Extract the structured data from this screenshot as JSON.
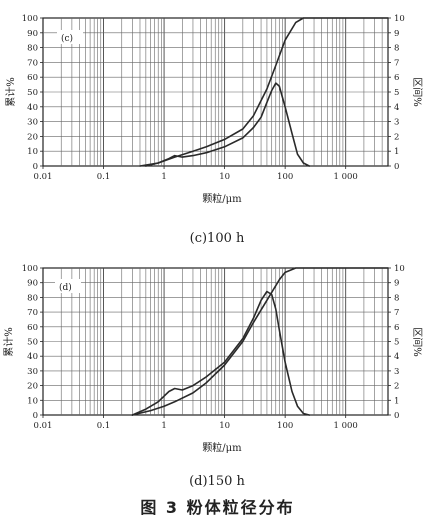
{
  "figure_caption": "图 3    粉体粒径分布",
  "chart_data": [
    {
      "type": "line",
      "caption": "(c)100 h",
      "panel_tag": "(c)",
      "xlabel": "颗粒/μm",
      "ylabel_left": "累计%",
      "ylabel_right": "区间%",
      "x_scale": "log",
      "xlim": [
        0.01,
        5000
      ],
      "ylim_left": [
        0,
        100
      ],
      "ylim_right": [
        0,
        10
      ],
      "x_ticks": [
        {
          "value": 0.01,
          "label": "0.01"
        },
        {
          "value": 0.1,
          "label": "0.1"
        },
        {
          "value": 1,
          "label": "1"
        },
        {
          "value": 10,
          "label": "10"
        },
        {
          "value": 100,
          "label": "100"
        },
        {
          "value": 1000,
          "label": "1 000"
        }
      ],
      "y_ticks_left": [
        "0",
        "10",
        "20",
        "30",
        "40",
        "50",
        "60",
        "70",
        "80",
        "90",
        "100"
      ],
      "y_ticks_right": [
        "0",
        "1",
        "2",
        "3",
        "4",
        "5",
        "6",
        "7",
        "8",
        "9",
        "10"
      ],
      "grid": true,
      "series": [
        {
          "axis": "left",
          "x": [
            0.4,
            0.8,
            1.5,
            3,
            5,
            10,
            20,
            30,
            50,
            70,
            100,
            150,
            200,
            300,
            1000,
            5000
          ],
          "y": [
            0,
            2,
            6,
            10,
            13,
            18,
            25,
            34,
            52,
            68,
            85,
            97,
            100,
            100,
            100,
            100
          ]
        },
        {
          "axis": "right",
          "x": [
            0.5,
            0.8,
            1.2,
            1.5,
            2,
            3,
            5,
            10,
            20,
            30,
            40,
            50,
            60,
            70,
            80,
            100,
            130,
            160,
            200,
            250
          ],
          "y": [
            0,
            0.2,
            0.5,
            0.7,
            0.6,
            0.7,
            0.9,
            1.3,
            1.9,
            2.6,
            3.3,
            4.3,
            5.1,
            5.6,
            5.4,
            4.0,
            2.2,
            0.8,
            0.2,
            0
          ]
        }
      ]
    },
    {
      "type": "line",
      "caption": "(d)150 h",
      "panel_tag": "(d)",
      "xlabel": "颗粒/μm",
      "ylabel_left": "累计%",
      "ylabel_right": "区间%",
      "x_scale": "log",
      "xlim": [
        0.01,
        5000
      ],
      "ylim_left": [
        0,
        100
      ],
      "ylim_right": [
        0,
        10
      ],
      "x_ticks": [
        {
          "value": 0.01,
          "label": "0.01"
        },
        {
          "value": 0.1,
          "label": "0.1"
        },
        {
          "value": 1,
          "label": "1"
        },
        {
          "value": 10,
          "label": "10"
        },
        {
          "value": 100,
          "label": "100"
        },
        {
          "value": 1000,
          "label": "1 000"
        }
      ],
      "y_ticks_left": [
        "0",
        "10",
        "20",
        "30",
        "40",
        "50",
        "60",
        "70",
        "80",
        "90",
        "100"
      ],
      "y_ticks_right": [
        "0",
        "1",
        "2",
        "3",
        "4",
        "5",
        "6",
        "7",
        "8",
        "9",
        "10"
      ],
      "grid": true,
      "series": [
        {
          "axis": "left",
          "x": [
            0.3,
            0.6,
            1,
            1.5,
            3,
            5,
            10,
            20,
            30,
            50,
            80,
            100,
            150,
            200,
            300,
            1000,
            5000
          ],
          "y": [
            0,
            3,
            6,
            9,
            15,
            22,
            34,
            50,
            63,
            78,
            92,
            97,
            100,
            100,
            100,
            100,
            100
          ]
        },
        {
          "axis": "right",
          "x": [
            0.3,
            0.5,
            0.8,
            1.2,
            1.5,
            2,
            3,
            5,
            10,
            20,
            30,
            40,
            50,
            60,
            70,
            80,
            100,
            130,
            160,
            200,
            250
          ],
          "y": [
            0,
            0.4,
            0.9,
            1.6,
            1.8,
            1.7,
            2.0,
            2.6,
            3.6,
            5.2,
            6.6,
            7.8,
            8.4,
            8.2,
            7.2,
            5.8,
            3.6,
            1.6,
            0.6,
            0.1,
            0
          ]
        }
      ]
    }
  ]
}
